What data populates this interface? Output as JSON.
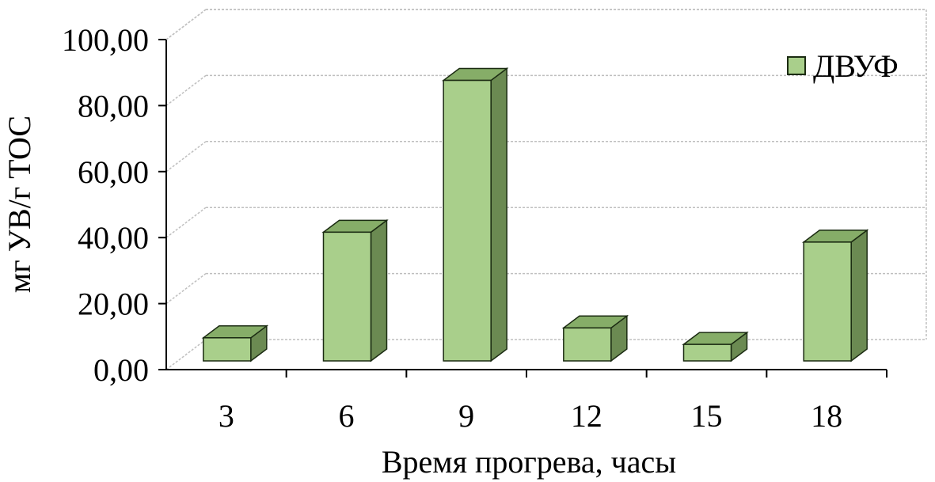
{
  "chart_data": {
    "type": "bar",
    "title": "",
    "xlabel": "Время прогрева, часы",
    "ylabel": "мг УВ/г ТОС",
    "categories": [
      "3",
      "6",
      "9",
      "12",
      "15",
      "18"
    ],
    "series": [
      {
        "name": "ДВУФ",
        "values": [
          7,
          39,
          85,
          10,
          5,
          36
        ]
      }
    ],
    "ylim": [
      0,
      100
    ],
    "yticks": [
      "0,00",
      "20,00",
      "40,00",
      "60,00",
      "80,00",
      "100,00"
    ],
    "grid": true,
    "legend": "top-right",
    "colors": {
      "bar_front": "#a9cf8b",
      "bar_side": "#6b8a52",
      "bar_top": "#86ad68",
      "bar_stroke": "#1b2b12",
      "grid": "#bfbfbf",
      "axis": "#000000"
    }
  }
}
